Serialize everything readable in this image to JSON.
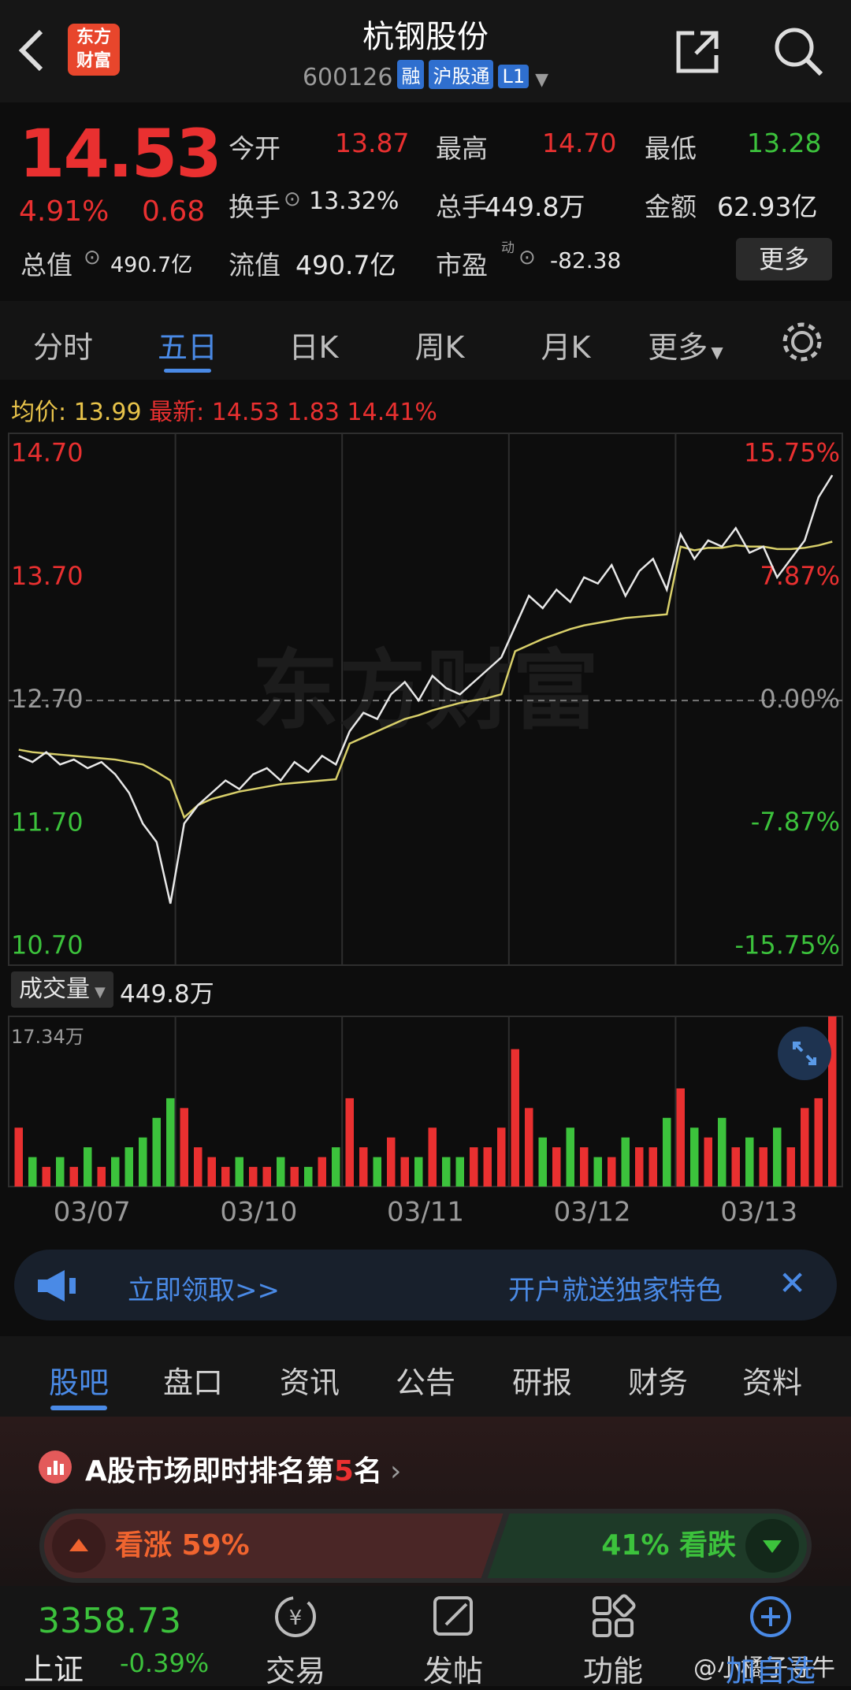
{
  "header": {
    "logo": [
      "东方",
      "财富"
    ],
    "title": "杭钢股份",
    "code": "600126",
    "tags": [
      "融",
      "沪股通",
      "L1"
    ]
  },
  "quote": {
    "price": "14.53",
    "change_pct": "4.91%",
    "change": "0.68",
    "fields": [
      {
        "label": "今开",
        "value": "13.87"
      },
      {
        "label": "最高",
        "value": "14.70"
      },
      {
        "label": "最低",
        "value": "13.28"
      },
      {
        "label": "换手",
        "value": "13.32%"
      },
      {
        "label": "总手",
        "value": "449.8万"
      },
      {
        "label": "金额",
        "value": "62.93亿"
      },
      {
        "label": "总值",
        "value": "490.7亿"
      },
      {
        "label": "流值",
        "value": "490.7亿"
      },
      {
        "label": "市盈",
        "sup": "动",
        "value": "-82.38"
      }
    ],
    "more": "更多"
  },
  "tabs": {
    "items": [
      "分时",
      "五日",
      "日K",
      "周K",
      "月K",
      "更多"
    ],
    "active": 1
  },
  "summary": {
    "avg_label": "均价:",
    "avg": "13.99",
    "last_label": "最新:",
    "last": "14.53",
    "change": "1.83",
    "change_pct": "14.41%"
  },
  "price_chart": {
    "watermark": "东方财富",
    "ylim": [
      10.55,
      14.87
    ],
    "yticks": [
      {
        "value": 14.7,
        "label": "14.70"
      },
      {
        "value": 13.7,
        "label": "13.70"
      },
      {
        "value": 12.7,
        "label": "12.70"
      },
      {
        "value": 11.7,
        "label": "11.70"
      },
      {
        "value": 10.7,
        "label": "10.70"
      }
    ],
    "y2lim": [
      -16.93,
      17.09
    ],
    "y2ticks": [
      {
        "value": 15.75,
        "label": "15.75%"
      },
      {
        "value": 7.87,
        "label": "7.87%"
      },
      {
        "value": 0,
        "label": "0.00%"
      },
      {
        "value": -7.87,
        "label": "-7.87%"
      },
      {
        "value": -15.75,
        "label": "-15.75%"
      }
    ],
    "tick_colors": [
      "#e93030",
      "#e93030",
      "#9a9a9a",
      "#3cc23c",
      "#3cc23c"
    ],
    "dashed_tick": 2,
    "price_color": "#e8e8e8",
    "avg_color": "#d8cf6a",
    "price": [
      12.25,
      12.2,
      12.28,
      12.18,
      12.22,
      12.15,
      12.2,
      12.1,
      11.95,
      11.7,
      11.55,
      11.05,
      11.7,
      11.85,
      11.95,
      12.05,
      11.98,
      12.1,
      12.15,
      12.05,
      12.2,
      12.12,
      12.25,
      12.18,
      12.45,
      12.6,
      12.55,
      12.75,
      12.85,
      12.7,
      12.9,
      12.8,
      12.75,
      12.85,
      12.95,
      13.05,
      13.3,
      13.55,
      13.45,
      13.6,
      13.5,
      13.7,
      13.65,
      13.8,
      13.55,
      13.75,
      13.85,
      13.6,
      14.05,
      13.85,
      14.0,
      13.95,
      14.1,
      13.9,
      13.95,
      13.7,
      13.85,
      14.0,
      14.35,
      14.53
    ],
    "avg": [
      12.3,
      12.28,
      12.27,
      12.26,
      12.25,
      12.24,
      12.23,
      12.22,
      12.2,
      12.18,
      12.12,
      12.05,
      11.75,
      11.85,
      11.9,
      11.93,
      11.96,
      11.98,
      12.0,
      12.02,
      12.03,
      12.04,
      12.05,
      12.06,
      12.35,
      12.4,
      12.45,
      12.5,
      12.55,
      12.58,
      12.62,
      12.65,
      12.68,
      12.7,
      12.72,
      12.75,
      13.1,
      13.15,
      13.2,
      13.24,
      13.28,
      13.31,
      13.33,
      13.35,
      13.37,
      13.38,
      13.39,
      13.4,
      13.95,
      13.92,
      13.94,
      13.94,
      13.96,
      13.95,
      13.95,
      13.93,
      13.93,
      13.94,
      13.96,
      13.99
    ]
  },
  "volume": {
    "label": "成交量",
    "total": "449.8万",
    "max_label": "17.34万",
    "ylim": [
      0,
      17.34
    ],
    "up_color": "#e93030",
    "down_color": "#3cc23c",
    "values": [
      6,
      3,
      2,
      3,
      2,
      4,
      2,
      3,
      4,
      5,
      7,
      9,
      8,
      4,
      3,
      2,
      3,
      2,
      2,
      3,
      2,
      2,
      3,
      4,
      9,
      4,
      3,
      5,
      3,
      3,
      6,
      3,
      3,
      4,
      4,
      6,
      14,
      8,
      5,
      4,
      6,
      4,
      3,
      3,
      5,
      4,
      4,
      7,
      10,
      6,
      5,
      7,
      4,
      5,
      4,
      6,
      4,
      8,
      9,
      17.34
    ]
  },
  "dates": [
    "03/07",
    "03/10",
    "03/11",
    "03/12",
    "03/13"
  ],
  "banner": {
    "left": "立即领取>>",
    "right": "开户就送独家特色"
  },
  "sections": {
    "items": [
      "股吧",
      "盘口",
      "资讯",
      "公告",
      "研报",
      "财务",
      "资料"
    ],
    "active": 0
  },
  "ranking": {
    "before": "A股市场即时排名第",
    "rank": "5",
    "after": "名"
  },
  "sentiment": {
    "up": {
      "value": 59,
      "label": "看涨 59%"
    },
    "down": {
      "value": 41,
      "label": "41% 看跌"
    }
  },
  "bottom_nav": {
    "index_value": "3358.73",
    "index_name": "上证",
    "index_change": "-0.39%",
    "items": [
      "交易",
      "发帖",
      "功能",
      "加自选"
    ],
    "watermark": "@小橘子寻牛"
  }
}
